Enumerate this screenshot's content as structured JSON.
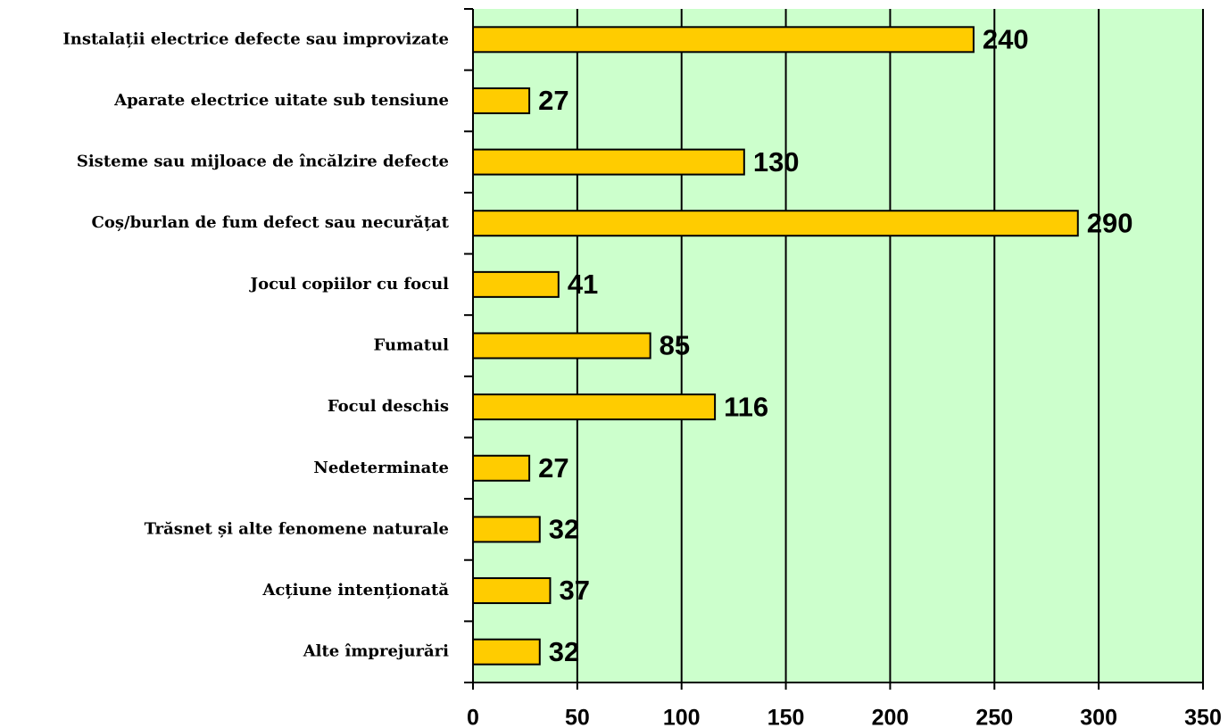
{
  "chart_data": {
    "type": "bar",
    "orientation": "horizontal",
    "categories": [
      "Instalații electrice defecte sau improvizate",
      "Aparate electrice uitate sub tensiune",
      "Sisteme sau mijloace de încălzire defecte",
      "Coș/burlan de fum defect sau necurățat",
      "Jocul copiilor cu focul",
      "Fumatul",
      "Focul deschis",
      "Nedeterminate",
      "Trăsnet și alte fenomene naturale",
      "Acțiune intenționată",
      "Alte împrejurări"
    ],
    "values": [
      240,
      27,
      130,
      290,
      41,
      85,
      116,
      27,
      32,
      37,
      32
    ],
    "color": "#ffcc00",
    "plot_background": "#ccffcc",
    "xlim": [
      0,
      350
    ],
    "xticks": [
      0,
      50,
      100,
      150,
      200,
      250,
      300,
      350
    ],
    "grid": true
  }
}
